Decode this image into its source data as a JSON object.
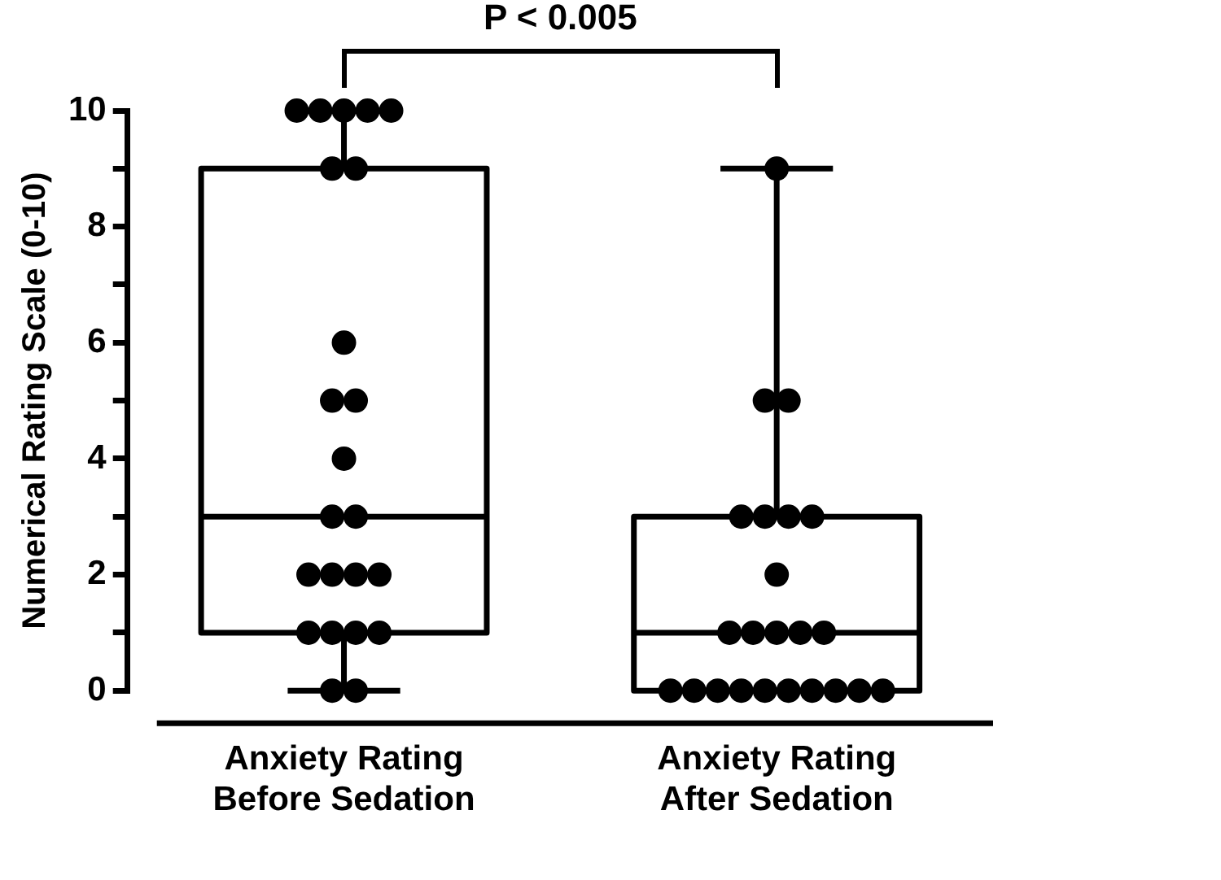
{
  "chart_data": {
    "type": "box",
    "ylabel": "Numerical Rating Scale (0-10)",
    "categories": [
      "Anxiety Rating Before Sedation",
      "Anxiety Rating After Sedation"
    ],
    "boxes": [
      {
        "low": 0,
        "q1": 1,
        "median": 3,
        "q3": 9,
        "high": 10
      },
      {
        "low": 0,
        "q1": 0,
        "median": 1,
        "q3": 3,
        "high": 9
      }
    ],
    "series": [
      {
        "type": "scatter",
        "color": "#000000",
        "x": [
          "Anxiety Rating Before Sedation",
          "Anxiety Rating Before Sedation",
          "Anxiety Rating Before Sedation",
          "Anxiety Rating Before Sedation",
          "Anxiety Rating Before Sedation",
          "Anxiety Rating Before Sedation",
          "Anxiety Rating Before Sedation",
          "Anxiety Rating Before Sedation",
          "Anxiety Rating Before Sedation",
          "Anxiety Rating Before Sedation",
          "Anxiety Rating Before Sedation",
          "Anxiety Rating Before Sedation",
          "Anxiety Rating Before Sedation",
          "Anxiety Rating Before Sedation",
          "Anxiety Rating Before Sedation",
          "Anxiety Rating Before Sedation",
          "Anxiety Rating Before Sedation",
          "Anxiety Rating Before Sedation",
          "Anxiety Rating Before Sedation",
          "Anxiety Rating Before Sedation",
          "Anxiety Rating Before Sedation",
          "Anxiety Rating Before Sedation",
          "Anxiety Rating Before Sedation",
          "Anxiety Rating After Sedation",
          "Anxiety Rating After Sedation",
          "Anxiety Rating After Sedation",
          "Anxiety Rating After Sedation",
          "Anxiety Rating After Sedation",
          "Anxiety Rating After Sedation",
          "Anxiety Rating After Sedation",
          "Anxiety Rating After Sedation",
          "Anxiety Rating After Sedation",
          "Anxiety Rating After Sedation",
          "Anxiety Rating After Sedation",
          "Anxiety Rating After Sedation",
          "Anxiety Rating After Sedation",
          "Anxiety Rating After Sedation",
          "Anxiety Rating After Sedation",
          "Anxiety Rating After Sedation",
          "Anxiety Rating After Sedation",
          "Anxiety Rating After Sedation",
          "Anxiety Rating After Sedation",
          "Anxiety Rating After Sedation",
          "Anxiety Rating After Sedation",
          "Anxiety Rating After Sedation",
          "Anxiety Rating After Sedation"
        ],
        "values": [
          10,
          10,
          10,
          10,
          10,
          9,
          9,
          6,
          5,
          5,
          4,
          3,
          3,
          2,
          2,
          2,
          2,
          1,
          1,
          1,
          1,
          0,
          0,
          9,
          5,
          5,
          3,
          3,
          3,
          3,
          2,
          1,
          1,
          1,
          1,
          1,
          0,
          0,
          0,
          0,
          0,
          0,
          0,
          0,
          0,
          0
        ]
      }
    ],
    "ylim": [
      0,
      10
    ],
    "yticks": [
      0,
      {
        "value": 1,
        "label": null
      },
      2,
      {
        "value": 3,
        "label": null
      },
      4,
      {
        "value": 5,
        "label": null
      },
      6,
      {
        "value": 7,
        "label": null
      },
      8,
      {
        "value": 9,
        "label": null
      },
      10
    ],
    "annotations": [
      "P < 0.005"
    ],
    "marker": "circle",
    "grid": false,
    "legend": false
  }
}
